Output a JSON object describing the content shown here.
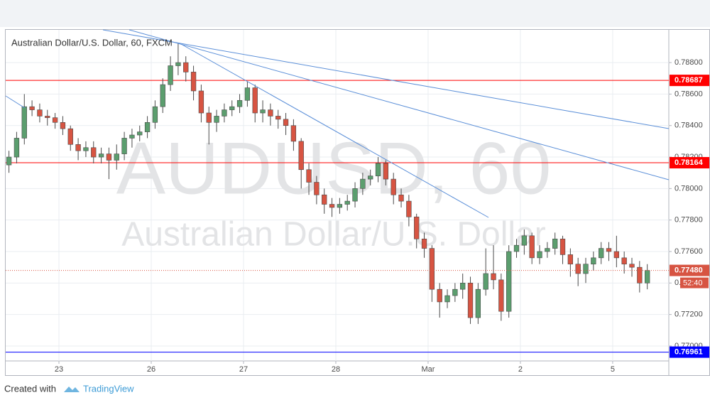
{
  "chart_data": {
    "type": "candlestick",
    "title": "Australian Dollar/U.S. Dollar, 60, FXCM",
    "watermark": [
      "AUDUSD, 60",
      "Australian Dollar/U.S. Dollar"
    ],
    "x": [
      -13,
      -11,
      -9,
      -7,
      -5,
      -3,
      -1,
      1,
      3,
      5,
      7,
      9,
      11,
      13,
      15,
      17,
      19,
      21,
      23,
      25,
      27,
      29,
      31,
      33,
      35,
      37,
      39,
      41,
      43,
      45,
      47,
      49,
      51,
      53,
      55,
      57,
      59,
      61,
      63,
      65,
      67,
      69,
      71,
      73,
      75,
      77,
      79,
      81,
      83,
      85,
      87,
      89,
      91,
      93,
      95,
      97,
      99,
      101,
      103,
      105,
      107,
      109,
      111,
      113,
      115,
      117,
      119,
      121,
      123,
      125,
      127,
      129,
      131,
      133,
      135,
      137,
      139,
      141,
      143,
      145,
      147,
      149,
      151,
      153
    ],
    "open": [
      0.7815,
      0.782,
      0.7832,
      0.7852,
      0.785,
      0.7846,
      0.7845,
      0.7842,
      0.7838,
      0.7828,
      0.7824,
      0.7826,
      0.782,
      0.7822,
      0.7818,
      0.7822,
      0.7832,
      0.7834,
      0.7836,
      0.7842,
      0.7852,
      0.7866,
      0.7878,
      0.788,
      0.7874,
      0.7862,
      0.7848,
      0.7842,
      0.7846,
      0.785,
      0.7852,
      0.7856,
      0.7864,
      0.7848,
      0.785,
      0.7846,
      0.7844,
      0.784,
      0.783,
      0.7812,
      0.7804,
      0.7796,
      0.779,
      0.7788,
      0.779,
      0.7792,
      0.78,
      0.7806,
      0.7808,
      0.7816,
      0.7806,
      0.7796,
      0.7792,
      0.7782,
      0.7768,
      0.7762,
      0.7736,
      0.7728,
      0.7732,
      0.7736,
      0.774,
      0.7718,
      0.7736,
      0.7746,
      0.7742,
      0.7722,
      0.776,
      0.7764,
      0.777,
      0.7756,
      0.776,
      0.7762,
      0.7768,
      0.7758,
      0.7752,
      0.7746,
      0.7752,
      0.7756,
      0.7762,
      0.776,
      0.7756,
      0.7752,
      0.775,
      0.774
    ],
    "high": [
      0.7824,
      0.7836,
      0.786,
      0.7856,
      0.7854,
      0.785,
      0.7848,
      0.7846,
      0.784,
      0.7832,
      0.783,
      0.783,
      0.7826,
      0.7826,
      0.7828,
      0.7836,
      0.7838,
      0.784,
      0.7846,
      0.7856,
      0.787,
      0.7884,
      0.7892,
      0.7884,
      0.7878,
      0.7866,
      0.7852,
      0.785,
      0.7854,
      0.7856,
      0.786,
      0.7868,
      0.7866,
      0.7856,
      0.7854,
      0.785,
      0.7848,
      0.7844,
      0.7832,
      0.7816,
      0.7808,
      0.78,
      0.7794,
      0.7794,
      0.7796,
      0.7804,
      0.781,
      0.7812,
      0.782,
      0.7818,
      0.781,
      0.78,
      0.7796,
      0.7784,
      0.7772,
      0.7764,
      0.774,
      0.7736,
      0.774,
      0.7746,
      0.7744,
      0.774,
      0.7762,
      0.7764,
      0.7746,
      0.7764,
      0.7768,
      0.7774,
      0.7772,
      0.7764,
      0.7766,
      0.7772,
      0.777,
      0.7762,
      0.7756,
      0.7756,
      0.776,
      0.7766,
      0.7766,
      0.777,
      0.776,
      0.7756,
      0.7754,
      0.7752
    ],
    "low": [
      0.781,
      0.7816,
      0.7828,
      0.7846,
      0.7842,
      0.784,
      0.7838,
      0.7834,
      0.7824,
      0.7818,
      0.782,
      0.7816,
      0.7816,
      0.7806,
      0.7812,
      0.7818,
      0.7826,
      0.783,
      0.7832,
      0.7838,
      0.7848,
      0.7862,
      0.7872,
      0.7868,
      0.7856,
      0.7842,
      0.7828,
      0.7836,
      0.7842,
      0.7846,
      0.7848,
      0.7852,
      0.7842,
      0.7842,
      0.784,
      0.7838,
      0.7834,
      0.7824,
      0.78,
      0.7796,
      0.779,
      0.7784,
      0.7782,
      0.7784,
      0.7786,
      0.7788,
      0.7796,
      0.7802,
      0.7804,
      0.7802,
      0.779,
      0.7788,
      0.7776,
      0.7762,
      0.7756,
      0.7728,
      0.7718,
      0.7724,
      0.7728,
      0.773,
      0.7714,
      0.7714,
      0.7732,
      0.7736,
      0.7716,
      0.7718,
      0.7756,
      0.7758,
      0.7752,
      0.7752,
      0.7756,
      0.7758,
      0.7752,
      0.7744,
      0.7738,
      0.774,
      0.7748,
      0.7752,
      0.7754,
      0.775,
      0.7746,
      0.7744,
      0.7734,
      0.7736
    ],
    "close": [
      0.782,
      0.7832,
      0.7852,
      0.785,
      0.7846,
      0.7845,
      0.7842,
      0.7838,
      0.7828,
      0.7824,
      0.7826,
      0.782,
      0.7822,
      0.7818,
      0.7822,
      0.7832,
      0.7834,
      0.7836,
      0.7842,
      0.7852,
      0.7866,
      0.7878,
      0.788,
      0.7874,
      0.7862,
      0.7848,
      0.7842,
      0.7846,
      0.785,
      0.7852,
      0.7856,
      0.7864,
      0.7848,
      0.785,
      0.7846,
      0.7844,
      0.784,
      0.783,
      0.7812,
      0.7804,
      0.7796,
      0.779,
      0.7788,
      0.779,
      0.7792,
      0.78,
      0.7806,
      0.7808,
      0.7816,
      0.7806,
      0.7796,
      0.7792,
      0.7782,
      0.7768,
      0.7762,
      0.7736,
      0.7728,
      0.7732,
      0.7736,
      0.774,
      0.7718,
      0.7736,
      0.7746,
      0.7742,
      0.7722,
      0.776,
      0.7764,
      0.777,
      0.7756,
      0.776,
      0.7762,
      0.7768,
      0.7758,
      0.7752,
      0.7746,
      0.7752,
      0.7756,
      0.7762,
      0.776,
      0.7756,
      0.7752,
      0.775,
      0.774,
      0.7748
    ],
    "up_color": "#5b9e6e",
    "down_color": "#d75442",
    "xlim": [
      -13.85,
      158.6
    ],
    "xticks": [
      {
        "value": 0,
        "label": "23"
      },
      {
        "value": 24,
        "label": "26"
      },
      {
        "value": 48,
        "label": "27"
      },
      {
        "value": 72,
        "label": "28"
      },
      {
        "value": 96,
        "label": "Mar"
      },
      {
        "value": 120,
        "label": "2"
      },
      {
        "value": 144,
        "label": "5"
      }
    ],
    "ylim": [
      0.76905,
      0.79008
    ],
    "yticks": [
      {
        "value": 0.77,
        "label": "0.77000"
      },
      {
        "value": 0.772,
        "label": "0.77200"
      },
      {
        "value": 0.774,
        "label": "0.77400"
      },
      {
        "value": 0.776,
        "label": "0.77600"
      },
      {
        "value": 0.778,
        "label": "0.77800"
      },
      {
        "value": 0.78,
        "label": "0.78000"
      },
      {
        "value": 0.782,
        "label": "0.78200"
      },
      {
        "value": 0.784,
        "label": "0.78400"
      },
      {
        "value": 0.786,
        "label": "0.78600"
      },
      {
        "value": 0.788,
        "label": "0.78800"
      }
    ],
    "grid": true,
    "hlines": [
      {
        "value": 0.78687,
        "color": "#ff0000"
      },
      {
        "value": 0.78164,
        "color": "#ff0000"
      },
      {
        "value": 0.76961,
        "color": "#0000ff"
      }
    ],
    "last_price": {
      "value": 0.7748,
      "label": "0.77480",
      "countdown": "52:40",
      "color": "#d75442"
    }
  },
  "footer": {
    "created_with": "Created with",
    "brand": "TradingView"
  }
}
